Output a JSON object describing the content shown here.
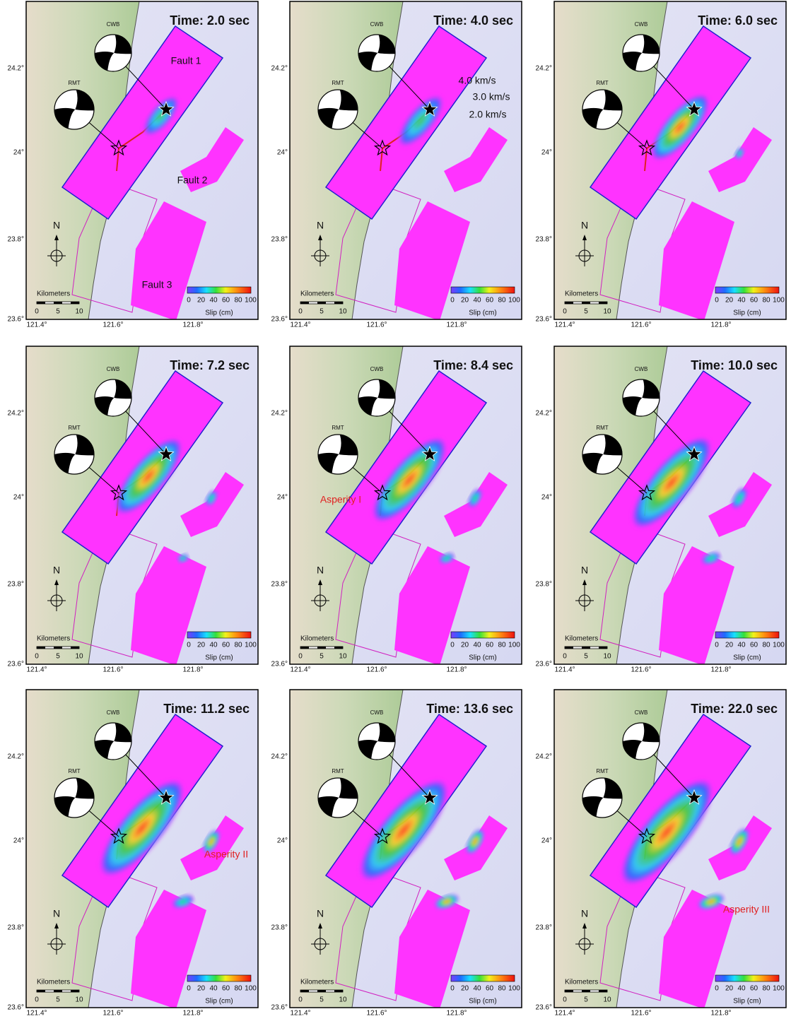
{
  "common": {
    "mechanisms": [
      "CWB",
      "RMT"
    ],
    "north": "N",
    "scale_title": "Kilometers",
    "scale_ticks": [
      "0",
      "5",
      "10"
    ],
    "colorbar_ticks": [
      "0",
      "20",
      "40",
      "60",
      "80",
      "100"
    ],
    "colorbar_label": "Slip (cm)",
    "lat_ticks": [
      "24.2°",
      "24°",
      "23.8°",
      "23.6°"
    ],
    "lon_ticks": [
      "121.4°",
      "121.6°",
      "121.8°"
    ]
  },
  "panels": [
    {
      "time": "Time: 2.0 sec",
      "annotations": [
        "Fault 1",
        "Fault 2",
        "Fault 3"
      ]
    },
    {
      "time": "Time: 4.0 sec",
      "annotations": [
        "4.0 km/s",
        "3.0 km/s",
        "2.0 km/s"
      ]
    },
    {
      "time": "Time: 6.0 sec",
      "annotations": []
    },
    {
      "time": "Time: 7.2 sec",
      "annotations": []
    },
    {
      "time": "Time: 8.4 sec",
      "annotations": [
        "Asperity I"
      ]
    },
    {
      "time": "Time: 10.0 sec",
      "annotations": []
    },
    {
      "time": "Time: 11.2 sec",
      "annotations": [
        "Asperity II"
      ]
    },
    {
      "time": "Time: 13.6 sec",
      "annotations": []
    },
    {
      "time": "Time: 22.0 sec",
      "annotations": [
        "Asperity III"
      ]
    }
  ]
}
